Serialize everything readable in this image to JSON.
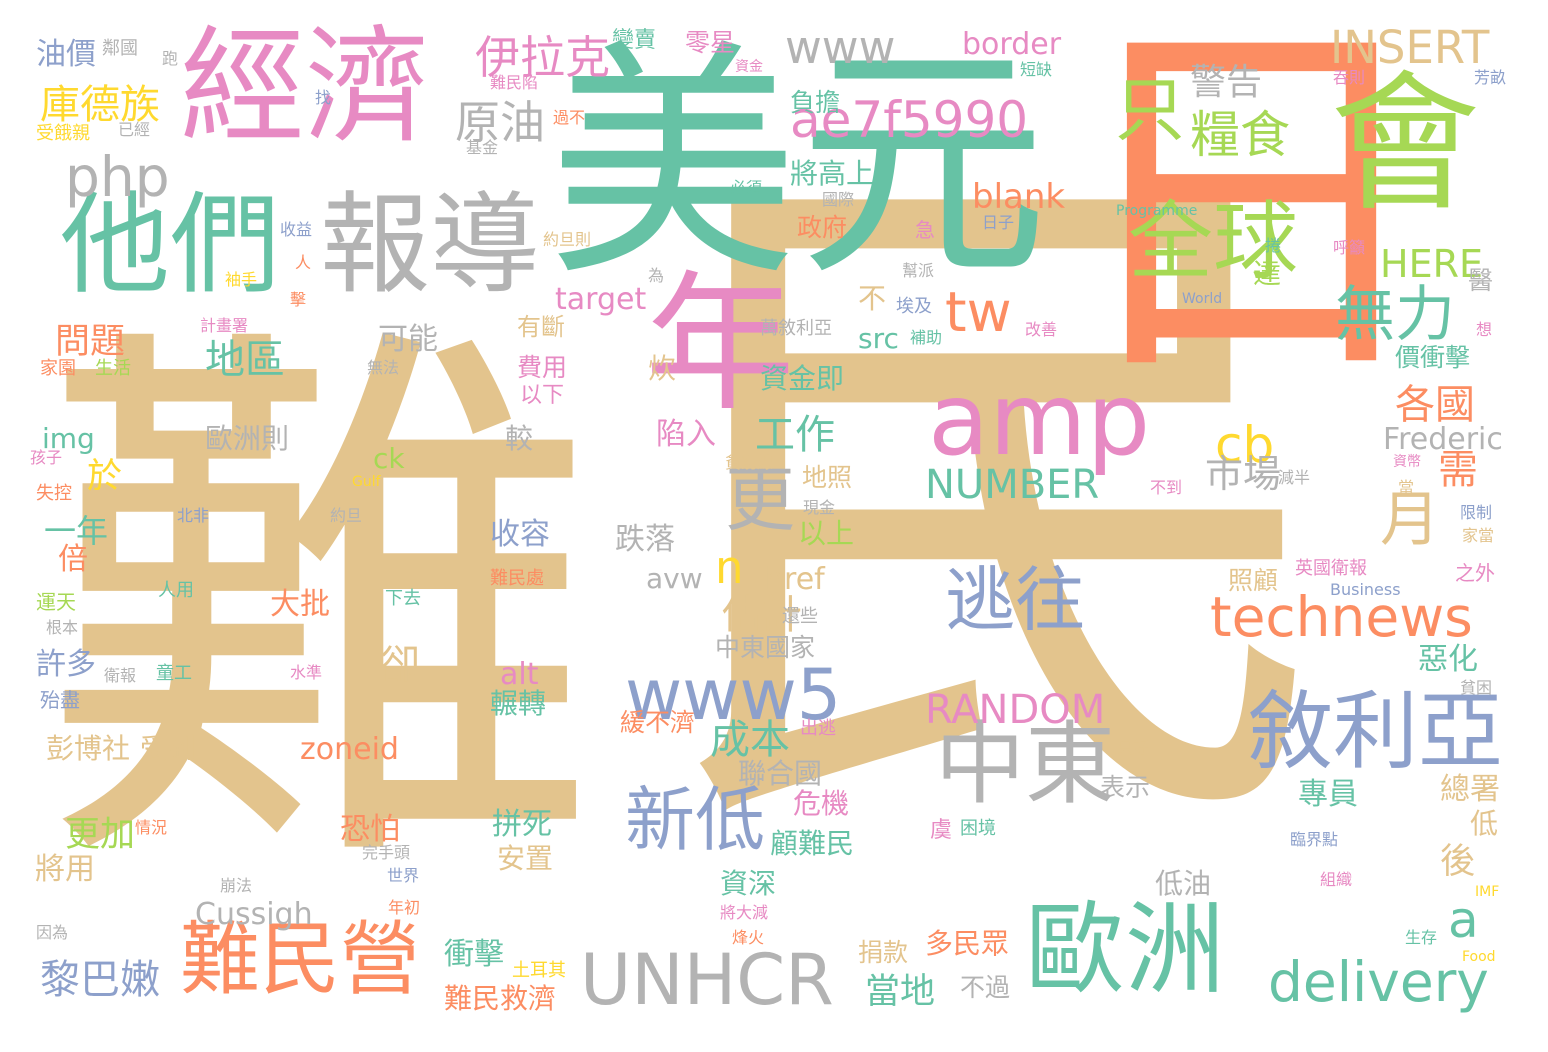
{
  "title": "",
  "palette": {
    "tan": "#e3c48d",
    "green": "#66c2a5",
    "orange": "#fc8d62",
    "pink": "#e78ac3",
    "blue": "#8da0cb",
    "lime": "#a6d854",
    "gold": "#ffd92f",
    "gray": "#b3b3b3"
  },
  "words": [
    {
      "text": "難",
      "color": "#e3c48d"
    },
    {
      "text": "民",
      "color": "#e3c48d"
    },
    {
      "text": "美元",
      "color": "#66c2a5"
    },
    {
      "text": "日",
      "color": "#fc8d62"
    },
    {
      "text": "會",
      "color": "#a6d854"
    },
    {
      "text": "經濟",
      "color": "#e78ac3"
    },
    {
      "text": "他們",
      "color": "#66c2a5"
    },
    {
      "text": "報導",
      "color": "#b3b3b3"
    },
    {
      "text": "年",
      "color": "#e78ac3"
    },
    {
      "text": "amp",
      "color": "#e78ac3"
    },
    {
      "text": "全球",
      "color": "#a6d854"
    },
    {
      "text": "只",
      "color": "#a6d854"
    },
    {
      "text": "糧食",
      "color": "#a6d854"
    },
    {
      "text": "歐洲",
      "color": "#66c2a5"
    },
    {
      "text": "中東",
      "color": "#b3b3b3"
    },
    {
      "text": "難民營",
      "color": "#fc8d62"
    },
    {
      "text": "敘利亞",
      "color": "#8da0cb"
    },
    {
      "text": "逃往",
      "color": "#8da0cb"
    },
    {
      "text": "technews",
      "color": "#fc8d62"
    },
    {
      "text": "UNHCR",
      "color": "#b3b3b3"
    },
    {
      "text": "www5",
      "color": "#8da0cb"
    },
    {
      "text": "新低",
      "color": "#8da0cb"
    },
    {
      "text": "更",
      "color": "#b3b3b3"
    },
    {
      "text": "月",
      "color": "#e3c48d"
    },
    {
      "text": "delivery",
      "color": "#66c2a5"
    },
    {
      "text": "無力",
      "color": "#66c2a5"
    },
    {
      "text": "ae7f5990",
      "color": "#e78ac3"
    },
    {
      "text": "www",
      "color": "#b3b3b3"
    },
    {
      "text": "tw",
      "color": "#fc8d62"
    },
    {
      "text": "cb",
      "color": "#ffd92f"
    },
    {
      "text": "php",
      "color": "#b3b3b3"
    },
    {
      "text": "伊拉克",
      "color": "#e78ac3"
    },
    {
      "text": "INSERT",
      "color": "#e3c48d"
    },
    {
      "text": "NUMBER",
      "color": "#66c2a5"
    },
    {
      "text": "RANDOM",
      "color": "#e78ac3"
    },
    {
      "text": "HERE",
      "color": "#a6d854"
    },
    {
      "text": "原油",
      "color": "#b3b3b3"
    },
    {
      "text": "庫德族",
      "color": "#ffd92f"
    },
    {
      "text": "黎巴嫩",
      "color": "#8da0cb"
    },
    {
      "text": "n",
      "color": "#ffd92f"
    },
    {
      "text": "a",
      "color": "#66c2a5"
    },
    {
      "text": "各國",
      "color": "#fc8d62"
    },
    {
      "text": "地區",
      "color": "#66c2a5"
    },
    {
      "text": "工作",
      "color": "#66c2a5"
    },
    {
      "text": "估計",
      "color": "#e3c48d"
    },
    {
      "text": "成本",
      "color": "#66c2a5"
    },
    {
      "text": "市場",
      "color": "#b3b3b3"
    },
    {
      "text": "警告",
      "color": "#b3b3b3"
    },
    {
      "text": "blank",
      "color": "#fc8d62"
    },
    {
      "text": "target",
      "color": "#e78ac3"
    },
    {
      "text": "border",
      "color": "#e78ac3"
    },
    {
      "text": "Frederic",
      "color": "#b3b3b3"
    },
    {
      "text": "zoneid",
      "color": "#fc8d62"
    },
    {
      "text": "Cussigh",
      "color": "#b3b3b3"
    },
    {
      "text": "href",
      "color": "#e3c48d"
    },
    {
      "text": "avw",
      "color": "#b3b3b3"
    },
    {
      "text": "alt",
      "color": "#e78ac3"
    },
    {
      "text": "src",
      "color": "#66c2a5"
    },
    {
      "text": "img",
      "color": "#66c2a5"
    },
    {
      "text": "ck",
      "color": "#a6d854"
    },
    {
      "text": "油價",
      "color": "#8da0cb"
    },
    {
      "text": "問題",
      "color": "#fc8d62"
    },
    {
      "text": "於",
      "color": "#ffd92f"
    },
    {
      "text": "一年",
      "color": "#66c2a5"
    },
    {
      "text": "倍",
      "color": "#fc8d62"
    },
    {
      "text": "許多",
      "color": "#8da0cb"
    },
    {
      "text": "更加",
      "color": "#a6d854"
    },
    {
      "text": "將用",
      "color": "#e3c48d"
    },
    {
      "text": "彭博社",
      "color": "#e3c48d"
    },
    {
      "text": "受到",
      "color": "#e3c48d"
    },
    {
      "text": "卻",
      "color": "#e3c48d"
    },
    {
      "text": "恐怕",
      "color": "#fc8d62"
    },
    {
      "text": "大批",
      "color": "#fc8d62"
    },
    {
      "text": "可能",
      "color": "#b3b3b3"
    },
    {
      "text": "歐洲則",
      "color": "#b3b3b3"
    },
    {
      "text": "收容",
      "color": "#8da0cb"
    },
    {
      "text": "跌落",
      "color": "#b3b3b3"
    },
    {
      "text": "輾轉",
      "color": "#66c2a5"
    },
    {
      "text": "拼死",
      "color": "#66c2a5"
    },
    {
      "text": "安置",
      "color": "#e3c48d"
    },
    {
      "text": "衝擊",
      "color": "#66c2a5"
    },
    {
      "text": "難民救濟",
      "color": "#fc8d62"
    },
    {
      "text": "費用",
      "color": "#e78ac3"
    },
    {
      "text": "有斷",
      "color": "#e3c48d"
    },
    {
      "text": "以下",
      "color": "#e78ac3"
    },
    {
      "text": "陷入",
      "color": "#e78ac3"
    },
    {
      "text": "資金即",
      "color": "#66c2a5"
    },
    {
      "text": "中東國家",
      "color": "#b3b3b3"
    },
    {
      "text": "聯合國",
      "color": "#b3b3b3"
    },
    {
      "text": "危機",
      "color": "#e78ac3"
    },
    {
      "text": "顧難民",
      "color": "#66c2a5"
    },
    {
      "text": "資深",
      "color": "#66c2a5"
    },
    {
      "text": "多民眾",
      "color": "#fc8d62"
    },
    {
      "text": "捐款",
      "color": "#e3c48d"
    },
    {
      "text": "當地",
      "color": "#66c2a5"
    },
    {
      "text": "不過",
      "color": "#b3b3b3"
    },
    {
      "text": "表示",
      "color": "#b3b3b3"
    },
    {
      "text": "低油",
      "color": "#b3b3b3"
    },
    {
      "text": "專員",
      "color": "#66c2a5"
    },
    {
      "text": "總署",
      "color": "#e3c48d"
    },
    {
      "text": "低",
      "color": "#e3c48d"
    },
    {
      "text": "後",
      "color": "#e3c48d"
    },
    {
      "text": "照顧",
      "color": "#e3c48d"
    },
    {
      "text": "惡化",
      "color": "#66c2a5"
    },
    {
      "text": "需",
      "color": "#fc8d62"
    },
    {
      "text": "價衝擊",
      "color": "#66c2a5"
    },
    {
      "text": "達",
      "color": "#a6d854"
    },
    {
      "text": "醫",
      "color": "#b3b3b3"
    },
    {
      "text": "將高上",
      "color": "#66c2a5"
    },
    {
      "text": "政府",
      "color": "#fc8d62"
    },
    {
      "text": "負擔",
      "color": "#66c2a5"
    },
    {
      "text": "地照",
      "color": "#e3c48d"
    },
    {
      "text": "以上",
      "color": "#a6d854"
    },
    {
      "text": "較",
      "color": "#b3b3b3"
    },
    {
      "text": "炊",
      "color": "#e3c48d"
    },
    {
      "text": "不",
      "color": "#e3c48d"
    },
    {
      "text": "鄰國",
      "color": "#b3b3b3"
    },
    {
      "text": "零星",
      "color": "#e78ac3"
    },
    {
      "text": "變賣",
      "color": "#66c2a5"
    },
    {
      "text": "難民陷",
      "color": "#e78ac3"
    },
    {
      "text": "過不",
      "color": "#fc8d62"
    },
    {
      "text": "基金",
      "color": "#b3b3b3"
    },
    {
      "text": "已經",
      "color": "#b3b3b3"
    },
    {
      "text": "受餓親",
      "color": "#ffd92f"
    },
    {
      "text": "找",
      "color": "#8da0cb"
    },
    {
      "text": "跑",
      "color": "#b3b3b3"
    },
    {
      "text": "必須",
      "color": "#66c2a5"
    },
    {
      "text": "國際",
      "color": "#b3b3b3"
    },
    {
      "text": "急",
      "color": "#e78ac3"
    },
    {
      "text": "幫派",
      "color": "#b3b3b3"
    },
    {
      "text": "補助",
      "color": "#66c2a5"
    },
    {
      "text": "為",
      "color": "#b3b3b3"
    },
    {
      "text": "埃及",
      "color": "#8da0cb"
    },
    {
      "text": "萬敘利亞",
      "color": "#b3b3b3"
    },
    {
      "text": "約旦則",
      "color": "#e3c48d"
    },
    {
      "text": "收益",
      "color": "#8da0cb"
    },
    {
      "text": "人",
      "color": "#fc8d62"
    },
    {
      "text": "袖手",
      "color": "#ffd92f"
    },
    {
      "text": "擊",
      "color": "#fc8d62"
    },
    {
      "text": "計畫署",
      "color": "#e78ac3"
    },
    {
      "text": "家園",
      "color": "#fc8d62"
    },
    {
      "text": "生活",
      "color": "#a6d854"
    },
    {
      "text": "無法",
      "color": "#b3b3b3"
    },
    {
      "text": "孩子",
      "color": "#e78ac3"
    },
    {
      "text": "失控",
      "color": "#fc8d62"
    },
    {
      "text": "北非",
      "color": "#8da0cb"
    },
    {
      "text": "約旦",
      "color": "#b3b3b3"
    },
    {
      "text": "Gulf",
      "color": "#ffd92f"
    },
    {
      "text": "運天",
      "color": "#a6d854"
    },
    {
      "text": "人用",
      "color": "#66c2a5"
    },
    {
      "text": "根本",
      "color": "#b3b3b3"
    },
    {
      "text": "衛報",
      "color": "#b3b3b3"
    },
    {
      "text": "童工",
      "color": "#66c2a5"
    },
    {
      "text": "水準",
      "color": "#e78ac3"
    },
    {
      "text": "殆盡",
      "color": "#8da0cb"
    },
    {
      "text": "情況",
      "color": "#fc8d62"
    },
    {
      "text": "完手頭",
      "color": "#b3b3b3"
    },
    {
      "text": "世界",
      "color": "#8da0cb"
    },
    {
      "text": "崩法",
      "color": "#b3b3b3"
    },
    {
      "text": "年初",
      "color": "#fc8d62"
    },
    {
      "text": "因為",
      "color": "#b3b3b3"
    },
    {
      "text": "難民處",
      "color": "#fc8d62"
    },
    {
      "text": "下去",
      "color": "#66c2a5"
    },
    {
      "text": "出逃",
      "color": "#e78ac3"
    },
    {
      "text": "緩不濟",
      "color": "#fc8d62"
    },
    {
      "text": "還些",
      "color": "#b3b3b3"
    },
    {
      "text": "貧窮線",
      "color": "#e3c48d"
    },
    {
      "text": "烽火",
      "color": "#fc8d62"
    },
    {
      "text": "將大減",
      "color": "#e78ac3"
    },
    {
      "text": "土耳其",
      "color": "#ffd92f"
    },
    {
      "text": "現金",
      "color": "#b3b3b3"
    },
    {
      "text": "不到",
      "color": "#e78ac3"
    },
    {
      "text": "減半",
      "color": "#b3b3b3"
    },
    {
      "text": "只好",
      "color": "#e3c48d"
    },
    {
      "text": "虞",
      "color": "#e78ac3"
    },
    {
      "text": "困境",
      "color": "#66c2a5"
    },
    {
      "text": "臨界點",
      "color": "#8da0cb"
    },
    {
      "text": "組織",
      "color": "#e78ac3"
    },
    {
      "text": "生存",
      "color": "#66c2a5"
    },
    {
      "text": "Food",
      "color": "#ffd92f"
    },
    {
      "text": "IMF",
      "color": "#ffd92f"
    },
    {
      "text": "Business",
      "color": "#8da0cb"
    },
    {
      "text": "英國衛報",
      "color": "#e78ac3"
    },
    {
      "text": "之外",
      "color": "#e78ac3"
    },
    {
      "text": "限制",
      "color": "#8da0cb"
    },
    {
      "text": "家當",
      "color": "#e3c48d"
    },
    {
      "text": "資幣",
      "color": "#e78ac3"
    },
    {
      "text": "當",
      "color": "#e3c48d"
    },
    {
      "text": "貧困",
      "color": "#b3b3b3"
    },
    {
      "text": "想",
      "color": "#e78ac3"
    },
    {
      "text": "呼籲",
      "color": "#e78ac3"
    },
    {
      "text": "改善",
      "color": "#e78ac3"
    },
    {
      "text": "捲",
      "color": "#66c2a5"
    },
    {
      "text": "World",
      "color": "#8da0cb"
    },
    {
      "text": "Programme",
      "color": "#66c2a5"
    },
    {
      "text": "日子",
      "color": "#8da0cb"
    },
    {
      "text": "短缺",
      "color": "#66c2a5"
    },
    {
      "text": "吞則",
      "color": "#e78ac3"
    },
    {
      "text": "芳畝",
      "color": "#8da0cb"
    },
    {
      "text": "資金",
      "color": "#e78ac3"
    }
  ]
}
